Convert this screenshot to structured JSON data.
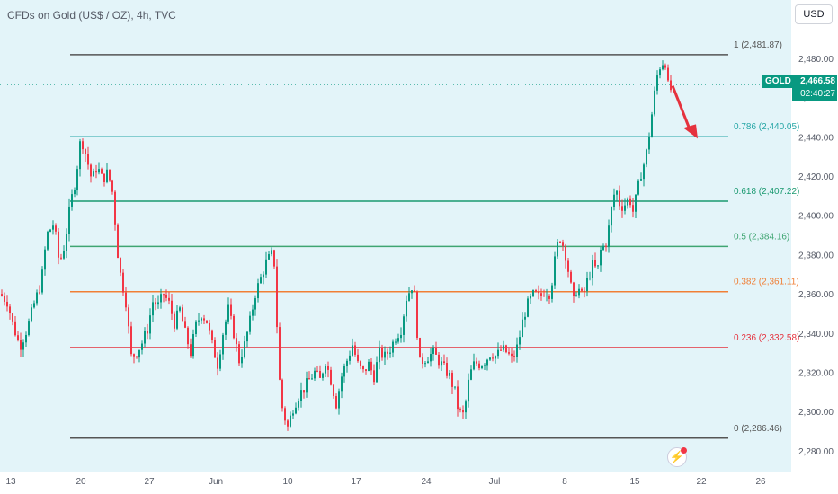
{
  "header": {
    "title": "CFDs on Gold (US$ / OZ), 4h, TVC"
  },
  "currency_button": "USD",
  "price_badge": {
    "symbol": "GOLD",
    "price": "2,466.58",
    "countdown": "02:40:27"
  },
  "icons": {
    "lightning": "lightning-icon"
  },
  "chart_data": {
    "type": "candlestick",
    "title": "CFDs on Gold (US$ / OZ), 4h, TVC",
    "y_axis": {
      "min": 2274,
      "max": 2496,
      "ticks": [
        2280,
        2300,
        2320,
        2340,
        2360,
        2380,
        2400,
        2420,
        2440,
        2460,
        2480
      ]
    },
    "x_axis": {
      "tick_labels": [
        "13",
        "20",
        "27",
        "Jun",
        "10",
        "17",
        "24",
        "Jul",
        "8",
        "15",
        "22",
        "26"
      ]
    },
    "current_price": 2466.58,
    "fib_levels": [
      {
        "ratio": "1",
        "value": "2,481.87",
        "price": 2481.87,
        "color": "#555555"
      },
      {
        "ratio": "0.786",
        "value": "2,440.05",
        "price": 2440.05,
        "color": "#26a6a6"
      },
      {
        "ratio": "0.618",
        "value": "2,407.22",
        "price": 2407.22,
        "color": "#1a9970"
      },
      {
        "ratio": "0.5",
        "value": "2,384.16",
        "price": 2384.16,
        "color": "#3fa572"
      },
      {
        "ratio": "0.382",
        "value": "2,361.11",
        "price": 2361.11,
        "color": "#f07f36"
      },
      {
        "ratio": "0.236",
        "value": "2,332.58",
        "price": 2332.58,
        "color": "#e5323e"
      },
      {
        "ratio": "0",
        "value": "2,286.46",
        "price": 2286.46,
        "color": "#555555"
      }
    ],
    "close_path": [
      [
        0,
        2360
      ],
      [
        8,
        2356
      ],
      [
        14,
        2345
      ],
      [
        22,
        2333
      ],
      [
        30,
        2342
      ],
      [
        38,
        2355
      ],
      [
        46,
        2366
      ],
      [
        52,
        2390
      ],
      [
        60,
        2396
      ],
      [
        66,
        2375
      ],
      [
        72,
        2385
      ],
      [
        78,
        2405
      ],
      [
        84,
        2418
      ],
      [
        90,
        2440
      ],
      [
        96,
        2430
      ],
      [
        102,
        2418
      ],
      [
        108,
        2425
      ],
      [
        114,
        2418
      ],
      [
        120,
        2422
      ],
      [
        126,
        2410
      ],
      [
        130,
        2384
      ],
      [
        134,
        2370
      ],
      [
        140,
        2356
      ],
      [
        146,
        2328
      ],
      [
        152,
        2330
      ],
      [
        158,
        2335
      ],
      [
        164,
        2342
      ],
      [
        170,
        2356
      ],
      [
        176,
        2354
      ],
      [
        182,
        2360
      ],
      [
        188,
        2355
      ],
      [
        194,
        2345
      ],
      [
        200,
        2352
      ],
      [
        206,
        2340
      ],
      [
        212,
        2330
      ],
      [
        218,
        2344
      ],
      [
        224,
        2350
      ],
      [
        230,
        2346
      ],
      [
        236,
        2334
      ],
      [
        242,
        2324
      ],
      [
        248,
        2340
      ],
      [
        254,
        2352
      ],
      [
        260,
        2340
      ],
      [
        266,
        2326
      ],
      [
        272,
        2334
      ],
      [
        278,
        2346
      ],
      [
        284,
        2360
      ],
      [
        290,
        2368
      ],
      [
        296,
        2376
      ],
      [
        302,
        2380
      ],
      [
        306,
        2374
      ],
      [
        308,
        2344
      ],
      [
        312,
        2306
      ],
      [
        316,
        2298
      ],
      [
        320,
        2292
      ],
      [
        326,
        2302
      ],
      [
        332,
        2308
      ],
      [
        338,
        2312
      ],
      [
        344,
        2316
      ],
      [
        350,
        2320
      ],
      [
        356,
        2316
      ],
      [
        362,
        2326
      ],
      [
        368,
        2316
      ],
      [
        374,
        2304
      ],
      [
        380,
        2318
      ],
      [
        386,
        2326
      ],
      [
        392,
        2334
      ],
      [
        398,
        2324
      ],
      [
        404,
        2320
      ],
      [
        410,
        2324
      ],
      [
        416,
        2318
      ],
      [
        422,
        2330
      ],
      [
        428,
        2328
      ],
      [
        434,
        2332
      ],
      [
        440,
        2338
      ],
      [
        446,
        2342
      ],
      [
        452,
        2358
      ],
      [
        458,
        2364
      ],
      [
        462,
        2357
      ],
      [
        466,
        2324
      ],
      [
        470,
        2326
      ],
      [
        476,
        2328
      ],
      [
        482,
        2330
      ],
      [
        488,
        2326
      ],
      [
        494,
        2322
      ],
      [
        500,
        2318
      ],
      [
        506,
        2310
      ],
      [
        510,
        2300
      ],
      [
        516,
        2298
      ],
      [
        522,
        2318
      ],
      [
        528,
        2325
      ],
      [
        534,
        2324
      ],
      [
        540,
        2326
      ],
      [
        546,
        2330
      ],
      [
        552,
        2328
      ],
      [
        558,
        2332
      ],
      [
        564,
        2330
      ],
      [
        570,
        2326
      ],
      [
        576,
        2334
      ],
      [
        582,
        2348
      ],
      [
        588,
        2356
      ],
      [
        594,
        2360
      ],
      [
        600,
        2358
      ],
      [
        606,
        2362
      ],
      [
        612,
        2360
      ],
      [
        618,
        2380
      ],
      [
        622,
        2390
      ],
      [
        626,
        2385
      ],
      [
        630,
        2378
      ],
      [
        634,
        2366
      ],
      [
        638,
        2356
      ],
      [
        642,
        2364
      ],
      [
        648,
        2358
      ],
      [
        654,
        2368
      ],
      [
        660,
        2376
      ],
      [
        664,
        2370
      ],
      [
        668,
        2382
      ],
      [
        674,
        2386
      ],
      [
        678,
        2396
      ],
      [
        682,
        2410
      ],
      [
        686,
        2412
      ],
      [
        690,
        2404
      ],
      [
        696,
        2406
      ],
      [
        700,
        2409
      ],
      [
        704,
        2402
      ],
      [
        708,
        2410
      ],
      [
        712,
        2420
      ],
      [
        716,
        2426
      ],
      [
        720,
        2434
      ],
      [
        724,
        2448
      ],
      [
        728,
        2462
      ],
      [
        732,
        2474
      ],
      [
        736,
        2478
      ],
      [
        740,
        2478
      ],
      [
        744,
        2462
      ],
      [
        748,
        2466
      ]
    ]
  }
}
